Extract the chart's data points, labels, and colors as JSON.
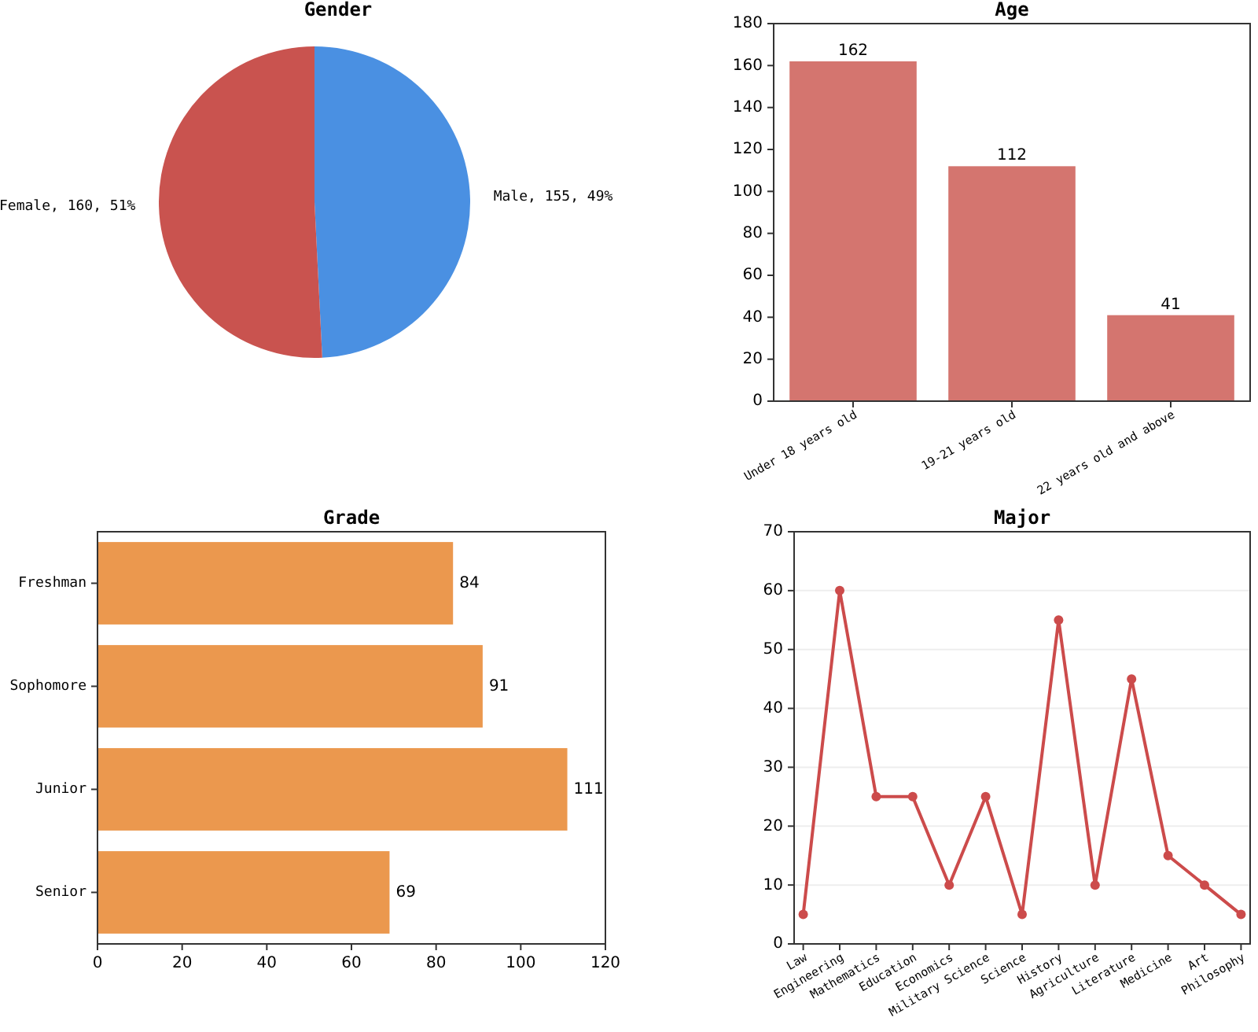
{
  "chart_data": [
    {
      "type": "pie",
      "title": "Gender",
      "categories": [
        "Male",
        "Female"
      ],
      "values": [
        155,
        160
      ],
      "colors": [
        "#4a90e2",
        "#c9534f"
      ],
      "value_labels": [
        ", 155, 49%",
        ", 160, 51%"
      ]
    },
    {
      "type": "bar",
      "title": "Age",
      "categories": [
        "Under 18 years old",
        "19-21 years old",
        "22 years old and above"
      ],
      "values": [
        162,
        112,
        41
      ],
      "color": "#d4756f",
      "ylim": [
        0,
        180
      ],
      "yticks": [
        0,
        20,
        40,
        60,
        80,
        100,
        120,
        140,
        160,
        180
      ],
      "data_labels": true
    },
    {
      "type": "bar",
      "orientation": "horizontal",
      "title": "Grade",
      "categories": [
        "Freshman",
        "Sophomore",
        "Junior",
        "Senior"
      ],
      "values": [
        84,
        91,
        111,
        69
      ],
      "color": "#eb984e",
      "xlim": [
        0,
        120
      ],
      "xticks": [
        0,
        20,
        40,
        60,
        80,
        100,
        120
      ],
      "data_labels": true
    },
    {
      "type": "line",
      "title": "Major",
      "categories": [
        "Law",
        "Engineering",
        "Mathematics",
        "Education",
        "Economics",
        "Military Science",
        "Science",
        "History",
        "Agriculture",
        "Literature",
        "Medicine",
        "Art",
        "Philosophy"
      ],
      "values": [
        5,
        60,
        25,
        25,
        10,
        25,
        5,
        55,
        10,
        45,
        15,
        10,
        5
      ],
      "color": "#cc4b4b",
      "ylim": [
        0,
        70
      ],
      "yticks": [
        0,
        10,
        20,
        30,
        40,
        50,
        60,
        70
      ],
      "grid": "y",
      "marker": "circle",
      "line_style": "solid"
    }
  ]
}
